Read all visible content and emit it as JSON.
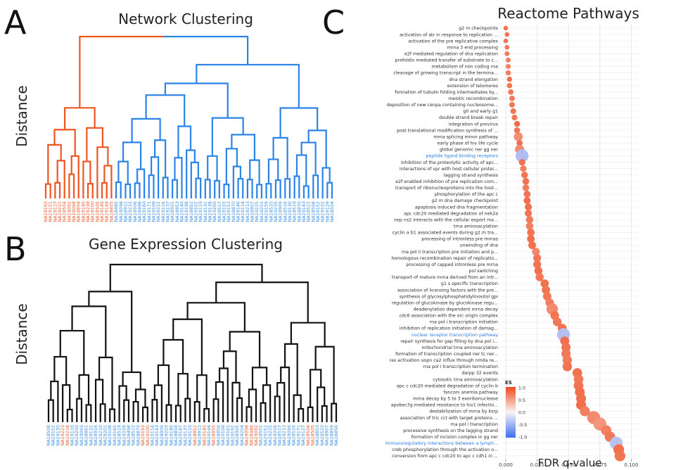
{
  "panels": {
    "a": {
      "letter": "A",
      "title": "Network Clustering",
      "ylabel": "Distance",
      "leaves": [
        {
          "label": "NA19193",
          "group": "red"
        },
        {
          "label": "NA19151",
          "group": "red"
        },
        {
          "label": "NA19127",
          "group": "red"
        },
        {
          "label": "NA19222",
          "group": "red"
        },
        {
          "label": "NA18504",
          "group": "red"
        },
        {
          "label": "NA19092",
          "group": "red"
        },
        {
          "label": "NA19098",
          "group": "red"
        },
        {
          "label": "NA18858",
          "group": "red"
        },
        {
          "label": "NA19190",
          "group": "red"
        },
        {
          "label": "NA19238",
          "group": "red"
        },
        {
          "label": "NA19100",
          "group": "red"
        },
        {
          "label": "NA18505",
          "group": "red"
        },
        {
          "label": "NA19140",
          "group": "red"
        },
        {
          "label": "NA19144",
          "group": "red"
        },
        {
          "label": "NA18855",
          "group": "red"
        },
        {
          "label": "NA18486",
          "group": "blue"
        },
        {
          "label": "NA19098",
          "group": "blue"
        },
        {
          "label": "NA18912",
          "group": "blue"
        },
        {
          "label": "NA19210",
          "group": "blue"
        },
        {
          "label": "NA18506",
          "group": "blue"
        },
        {
          "label": "NA18498",
          "group": "blue"
        },
        {
          "label": "NA19160",
          "group": "blue"
        },
        {
          "label": "NA19171",
          "group": "blue"
        },
        {
          "label": "NA19109",
          "group": "blue"
        },
        {
          "label": "NA19222",
          "group": "blue"
        },
        {
          "label": "NA19116",
          "group": "blue"
        },
        {
          "label": "NA19137",
          "group": "blue"
        },
        {
          "label": "NA18501",
          "group": "blue"
        },
        {
          "label": "NA18853",
          "group": "blue"
        },
        {
          "label": "NA19140",
          "group": "blue"
        },
        {
          "label": "NA19198",
          "group": "blue"
        },
        {
          "label": "NA18852",
          "group": "blue"
        },
        {
          "label": "NA19102",
          "group": "blue"
        },
        {
          "label": "NA19119",
          "group": "blue"
        },
        {
          "label": "NA19131",
          "group": "blue"
        },
        {
          "label": "NA19138",
          "group": "blue"
        },
        {
          "label": "NA19200",
          "group": "blue"
        },
        {
          "label": "NA18517",
          "group": "blue"
        },
        {
          "label": "NA19101",
          "group": "blue"
        },
        {
          "label": "NA19152",
          "group": "blue"
        },
        {
          "label": "NA18870",
          "group": "blue"
        },
        {
          "label": "NA19146",
          "group": "blue"
        },
        {
          "label": "NA19114",
          "group": "blue"
        },
        {
          "label": "NA19213",
          "group": "blue"
        },
        {
          "label": "NA18907",
          "group": "blue"
        },
        {
          "label": "NA19225",
          "group": "blue"
        },
        {
          "label": "NA19201",
          "group": "blue"
        },
        {
          "label": "NA19159",
          "group": "blue"
        },
        {
          "label": "NA18520",
          "group": "blue"
        },
        {
          "label": "NA19235",
          "group": "blue"
        },
        {
          "label": "NA18909",
          "group": "blue"
        },
        {
          "label": "NA18516",
          "group": "blue"
        },
        {
          "label": "NA19130",
          "group": "blue"
        },
        {
          "label": "NA18519",
          "group": "blue"
        },
        {
          "label": "NA18870",
          "group": "blue"
        },
        {
          "label": "NA19143",
          "group": "blue"
        },
        {
          "label": "NA18522",
          "group": "blue"
        },
        {
          "label": "NA18508",
          "group": "blue"
        },
        {
          "label": "NA19152",
          "group": "blue"
        },
        {
          "label": "NA19102",
          "group": "blue"
        },
        {
          "label": "NA19129",
          "group": "blue"
        },
        {
          "label": "NA18504",
          "group": "blue"
        }
      ]
    },
    "b": {
      "letter": "B",
      "title": "Gene Expression Clustering",
      "ylabel": "Distance",
      "leaves": [
        {
          "label": "NA18508",
          "group": "blue"
        },
        {
          "label": "NA19152",
          "group": "blue"
        },
        {
          "label": "NA19130",
          "group": "blue"
        },
        {
          "label": "NA19222",
          "group": "red"
        },
        {
          "label": "NA19238",
          "group": "red"
        },
        {
          "label": "NA19116",
          "group": "blue"
        },
        {
          "label": "NA19200",
          "group": "blue"
        },
        {
          "label": "NA19093",
          "group": "blue"
        },
        {
          "label": "NA18861",
          "group": "blue"
        },
        {
          "label": "NA19131",
          "group": "blue"
        },
        {
          "label": "NA18916",
          "group": "blue"
        },
        {
          "label": "NA19210",
          "group": "blue"
        },
        {
          "label": "NA19201",
          "group": "blue"
        },
        {
          "label": "NA19108",
          "group": "blue"
        },
        {
          "label": "NA19160",
          "group": "blue"
        },
        {
          "label": "NA18519",
          "group": "blue"
        },
        {
          "label": "NA19209",
          "group": "blue"
        },
        {
          "label": "NA18498",
          "group": "blue"
        },
        {
          "label": "NA18522",
          "group": "blue"
        },
        {
          "label": "NA18870",
          "group": "blue"
        },
        {
          "label": "NA19193",
          "group": "red"
        },
        {
          "label": "NA19100",
          "group": "red"
        },
        {
          "label": "NA19114",
          "group": "blue"
        },
        {
          "label": "NA19143",
          "group": "blue"
        },
        {
          "label": "NA18909",
          "group": "blue"
        },
        {
          "label": "NA19203",
          "group": "blue"
        },
        {
          "label": "NA19190",
          "group": "blue"
        },
        {
          "label": "NA18858",
          "group": "blue"
        },
        {
          "label": "NA19147",
          "group": "blue"
        },
        {
          "label": "NA19137",
          "group": "blue"
        },
        {
          "label": "NA19119",
          "group": "blue"
        },
        {
          "label": "NA18852",
          "group": "red"
        },
        {
          "label": "NA18912",
          "group": "blue"
        },
        {
          "label": "NA19140",
          "group": "red"
        },
        {
          "label": "NA19144",
          "group": "blue"
        },
        {
          "label": "NA18855",
          "group": "red"
        },
        {
          "label": "NA18856",
          "group": "blue"
        },
        {
          "label": "NA19108",
          "group": "blue"
        },
        {
          "label": "NA19161",
          "group": "blue"
        },
        {
          "label": "NA19192",
          "group": "blue"
        },
        {
          "label": "NA18905",
          "group": "blue"
        },
        {
          "label": "NA19204",
          "group": "blue"
        },
        {
          "label": "NA19098",
          "group": "red"
        },
        {
          "label": "NA18486",
          "group": "red"
        },
        {
          "label": "NA19092",
          "group": "red"
        },
        {
          "label": "NA18501",
          "group": "blue"
        },
        {
          "label": "NA19151",
          "group": "blue"
        },
        {
          "label": "NA19225",
          "group": "blue"
        },
        {
          "label": "NA19209",
          "group": "blue"
        },
        {
          "label": "NA18517",
          "group": "blue"
        },
        {
          "label": "NA19213",
          "group": "blue"
        },
        {
          "label": "NA19099",
          "group": "blue"
        },
        {
          "label": "NA18516",
          "group": "blue"
        },
        {
          "label": "NA19171",
          "group": "blue"
        },
        {
          "label": "NA19127",
          "group": "blue"
        },
        {
          "label": "NA18504",
          "group": "red"
        },
        {
          "label": "NA18505",
          "group": "red"
        },
        {
          "label": "NA18853",
          "group": "blue"
        },
        {
          "label": "NA18520",
          "group": "blue"
        },
        {
          "label": "NA18907",
          "group": "blue"
        },
        {
          "label": "NA18859",
          "group": "blue"
        },
        {
          "label": "NA18856",
          "group": "blue"
        }
      ]
    },
    "c": {
      "letter": "C",
      "title": "Reactome Pathways",
      "xlabel": "FDR q-value"
    }
  },
  "chart_data": {
    "type": "scatter",
    "title": "Reactome Pathways",
    "xlabel": "FDR q-value",
    "xlim": [
      0,
      0.102
    ],
    "xticks": [
      "0.000",
      "0.025",
      "0.050",
      "0.075",
      "0.100"
    ],
    "grid": true,
    "legend": {
      "title": "ES",
      "placement": "bottom-left",
      "ticks": [
        "1.0",
        "0.5",
        "0.0",
        "-0.5",
        "-1.0"
      ],
      "range": [
        -1,
        1
      ]
    },
    "colors": {
      "positive": "#f04a1e",
      "mid": "#f7f4f2",
      "negative": "#6e8cf5",
      "label_blue": "#2a7ae2"
    },
    "points": [
      {
        "label": "g2 m checkpoints",
        "q": 0.0,
        "es": 0.62
      },
      {
        "label": "activation of atr in response to replication ...",
        "q": 0.001,
        "es": 0.6
      },
      {
        "label": "activation of the pre replicative complex",
        "q": 0.0,
        "es": 0.58
      },
      {
        "label": "mrna 3 end processing",
        "q": 0.001,
        "es": 0.56
      },
      {
        "label": "e2f mediated regulation of dna replication",
        "q": 0.001,
        "es": 0.58
      },
      {
        "label": "prefoldin mediated transfer of substrate to c...",
        "q": 0.002,
        "es": 0.55
      },
      {
        "label": "metabolism of non coding rna",
        "q": 0.002,
        "es": 0.53
      },
      {
        "label": "cleavage of growing transcript in the termina...",
        "q": 0.002,
        "es": 0.55
      },
      {
        "label": "dna strand elongation",
        "q": 0.003,
        "es": 0.62
      },
      {
        "label": "extension of telomeres",
        "q": 0.003,
        "es": 0.6
      },
      {
        "label": "formation of tubulin folding intermediates by...",
        "q": 0.004,
        "es": 0.58
      },
      {
        "label": "meiotic recombination",
        "q": 0.005,
        "es": 0.57
      },
      {
        "label": "deposition of new cenpa containing nucleosome...",
        "q": 0.005,
        "es": 0.59
      },
      {
        "label": "g0 and early g1",
        "q": 0.006,
        "es": 0.6
      },
      {
        "label": "double strand break repair",
        "q": 0.007,
        "es": 0.58
      },
      {
        "label": "integration of provirus",
        "q": 0.009,
        "es": 0.63
      },
      {
        "label": "post translational modification synthesis of ...",
        "q": 0.009,
        "es": 0.6
      },
      {
        "label": "mrna splicing minor pathway",
        "q": 0.01,
        "es": 0.48
      },
      {
        "label": "early phase of hiv life cycle",
        "q": 0.011,
        "es": 0.62
      },
      {
        "label": "global genomic ner gg ner",
        "q": 0.011,
        "es": 0.5
      },
      {
        "label": "peptide ligand binding receptors",
        "q": 0.013,
        "es": -0.42,
        "highlight": true
      },
      {
        "label": "inhibition of the proteolytic activity of apc...",
        "q": 0.013,
        "es": 0.62
      },
      {
        "label": "interactions of vpr with host cellular protei...",
        "q": 0.014,
        "es": 0.55
      },
      {
        "label": "lagging strand synthesis",
        "q": 0.015,
        "es": 0.6
      },
      {
        "label": "e2f enabled inhibition of pre replication com...",
        "q": 0.016,
        "es": 0.62
      },
      {
        "label": "transport of ribonucleoproteins into the host...",
        "q": 0.016,
        "es": 0.55
      },
      {
        "label": "phosphorylation of the apc c",
        "q": 0.017,
        "es": 0.6
      },
      {
        "label": "g2 m dna damage checkpoint",
        "q": 0.017,
        "es": 0.62
      },
      {
        "label": "apoptosis induced dna fragmentation",
        "q": 0.018,
        "es": 0.61
      },
      {
        "label": "apc cdc20 mediated degradation of nek2a",
        "q": 0.018,
        "es": 0.59
      },
      {
        "label": "nep ns2 interacts with the cellular export ma...",
        "q": 0.019,
        "es": 0.58
      },
      {
        "label": "trna aminoacylation",
        "q": 0.019,
        "es": 0.55
      },
      {
        "label": "cyclin a b1 associated events during g2 m tra...",
        "q": 0.02,
        "es": 0.6
      },
      {
        "label": "processing of intronless pre mrnas",
        "q": 0.02,
        "es": 0.62
      },
      {
        "label": "unwinding of dna",
        "q": 0.021,
        "es": 0.61
      },
      {
        "label": "rna pol ii transcription pre initiation and p...",
        "q": 0.024,
        "es": 0.52
      },
      {
        "label": "homologous recombination repair of replicatio...",
        "q": 0.025,
        "es": 0.58
      },
      {
        "label": "processing of capped intronless pre mrna",
        "q": 0.025,
        "es": 0.6
      },
      {
        "label": "pol switching",
        "q": 0.026,
        "es": 0.62
      },
      {
        "label": "transport of mature mrna derived from an intr...",
        "q": 0.027,
        "es": 0.58
      },
      {
        "label": "g1 s specific transcription",
        "q": 0.031,
        "es": 0.62
      },
      {
        "label": "association of licensing factors with the pre...",
        "q": 0.032,
        "es": 0.6
      },
      {
        "label": "synthesis of glycosylphosphatidylinositol gpi",
        "q": 0.033,
        "es": 0.58
      },
      {
        "label": "regulation of glucokinase by glucokinase regu...",
        "q": 0.035,
        "es": 0.55
      },
      {
        "label": "deadenylation dependent mrna decay",
        "q": 0.037,
        "es": 0.5
      },
      {
        "label": "cdc6 association with the orc origin complex",
        "q": 0.039,
        "es": 0.6
      },
      {
        "label": "rna pol i transcription initiation",
        "q": 0.041,
        "es": 0.58
      },
      {
        "label": "inhibition of replication initiation of damag...",
        "q": 0.045,
        "es": 0.61
      },
      {
        "label": "nuclear receptor transcription pathway",
        "q": 0.046,
        "es": -0.4,
        "highlight": true
      },
      {
        "label": "repair synthesis for gap filling by dna pol i...",
        "q": 0.047,
        "es": 0.62
      },
      {
        "label": "mitochondrial trna aminoacylation",
        "q": 0.048,
        "es": 0.6
      },
      {
        "label": "formation of transcription coupled ner tc ner...",
        "q": 0.048,
        "es": 0.58
      },
      {
        "label": "ras activation uopn ca2 influx through nmda re...",
        "q": 0.049,
        "es": 0.57
      },
      {
        "label": "rna pol i transcription termination",
        "q": 0.049,
        "es": 0.6
      },
      {
        "label": "darpp 32 events",
        "q": 0.057,
        "es": 0.62
      },
      {
        "label": "cytosolic trna aminoacylation",
        "q": 0.058,
        "es": 0.58
      },
      {
        "label": "apc c cdc20 mediated degradation of cyclin b",
        "q": 0.058,
        "es": 0.6
      },
      {
        "label": "fanconi anemia pathway",
        "q": 0.059,
        "es": 0.62
      },
      {
        "label": "mrna decay by 5 to 3 exoribonuclease",
        "q": 0.06,
        "es": 0.61
      },
      {
        "label": "apobec3g mediated resistance to hiv1 infectio...",
        "q": 0.06,
        "es": 0.63
      },
      {
        "label": "destabilization of mrna by ksrp",
        "q": 0.063,
        "es": 0.55
      },
      {
        "label": "association of tric cct with target proteins ...",
        "q": 0.07,
        "es": 0.5
      },
      {
        "label": "rna pol i transcription",
        "q": 0.075,
        "es": 0.45
      },
      {
        "label": "processive synthesis on the lagging strand",
        "q": 0.08,
        "es": 0.55
      },
      {
        "label": "formation of incision complex in gg ner",
        "q": 0.083,
        "es": 0.58
      },
      {
        "label": "immunoregulatory interactions between a lymph...",
        "q": 0.088,
        "es": -0.38,
        "highlight": true
      },
      {
        "label": "creb phosphorylation through the activation o...",
        "q": 0.09,
        "es": 0.62
      },
      {
        "label": "conversion from apc c cdc20 to apc c cdh1 in ...",
        "q": 0.091,
        "es": 0.6
      }
    ]
  }
}
